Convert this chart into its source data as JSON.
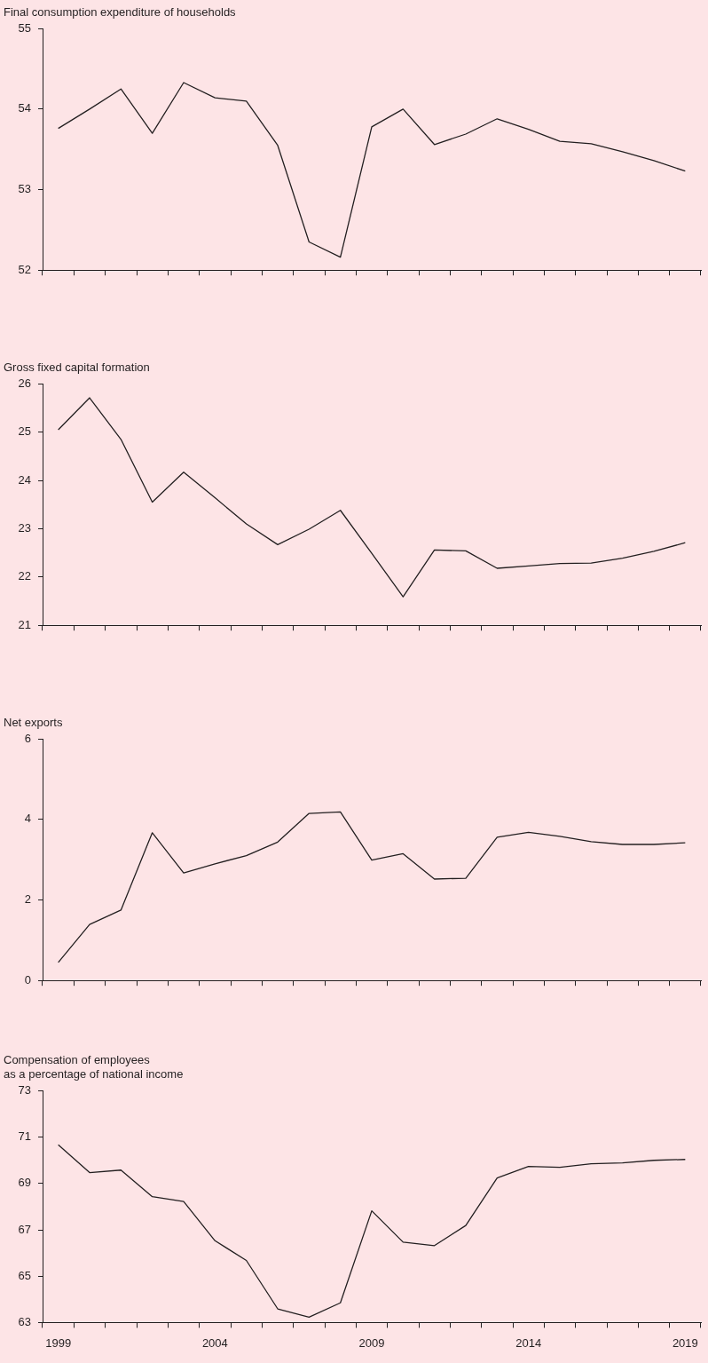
{
  "chart_data": [
    {
      "type": "line",
      "title": "Final consumption expenditure of households",
      "categories": [
        "1999",
        null,
        null,
        null,
        null,
        "2004",
        null,
        null,
        null,
        null,
        "2009",
        null,
        null,
        null,
        null,
        "2014",
        null,
        null,
        null,
        null,
        "2019"
      ],
      "tick_labels": "y",
      "ylim": [
        52,
        55
      ],
      "yticks": [
        52,
        53,
        54,
        55
      ],
      "legend": false,
      "marker": "none",
      "series": [
        {
          "color": "#231f20",
          "values": [
            53.76,
            54.0,
            54.25,
            53.7,
            54.33,
            54.14,
            54.1,
            53.55,
            52.35,
            52.16,
            53.78,
            54.0,
            53.56,
            53.69,
            53.88,
            53.75,
            53.6,
            53.57,
            53.47,
            53.36,
            53.23
          ]
        }
      ]
    },
    {
      "type": "line",
      "title": "Gross fixed capital formation",
      "categories": [
        "1999",
        null,
        null,
        null,
        null,
        "2004",
        null,
        null,
        null,
        null,
        "2009",
        null,
        null,
        null,
        null,
        "2014",
        null,
        null,
        null,
        null,
        "2019"
      ],
      "tick_labels": "y",
      "ylim": [
        21,
        26
      ],
      "yticks": [
        21,
        22,
        23,
        24,
        25,
        26
      ],
      "legend": false,
      "marker": "none",
      "series": [
        {
          "color": "#231f20",
          "values": [
            25.05,
            25.71,
            24.85,
            23.55,
            24.17,
            23.64,
            23.1,
            22.67,
            22.99,
            23.38,
            22.49,
            21.59,
            22.56,
            22.54,
            22.18,
            22.23,
            22.28,
            22.29,
            22.39,
            22.53,
            22.71
          ]
        }
      ]
    },
    {
      "type": "line",
      "title": "Net exports",
      "categories": [
        "1999",
        null,
        null,
        null,
        null,
        "2004",
        null,
        null,
        null,
        null,
        "2009",
        null,
        null,
        null,
        null,
        "2014",
        null,
        null,
        null,
        null,
        "2019"
      ],
      "tick_labels": "y",
      "ylim": [
        0,
        6
      ],
      "yticks": [
        0,
        2,
        4,
        6
      ],
      "legend": false,
      "marker": "none",
      "series": [
        {
          "color": "#231f20",
          "values": [
            0.45,
            1.39,
            1.75,
            3.67,
            2.67,
            2.9,
            3.1,
            3.44,
            4.15,
            4.19,
            2.99,
            3.15,
            2.52,
            2.54,
            3.56,
            3.68,
            3.58,
            3.45,
            3.38,
            3.38,
            3.42
          ]
        }
      ]
    },
    {
      "type": "line",
      "title": "Compensation of employees\nas a percentage of national income",
      "categories": [
        "1999",
        null,
        null,
        null,
        null,
        "2004",
        null,
        null,
        null,
        null,
        "2009",
        null,
        null,
        null,
        null,
        "2014",
        null,
        null,
        null,
        null,
        "2019"
      ],
      "ylim": [
        63,
        73
      ],
      "yticks": [
        63,
        65,
        67,
        69,
        71,
        73
      ],
      "legend": false,
      "marker": "none",
      "series": [
        {
          "color": "#231f20",
          "values": [
            70.67,
            69.47,
            69.58,
            68.43,
            68.22,
            66.53,
            65.68,
            63.59,
            63.23,
            63.85,
            67.82,
            66.47,
            66.32,
            67.19,
            69.24,
            69.74,
            69.7,
            69.85,
            69.89,
            70.0,
            70.04
          ]
        }
      ]
    }
  ]
}
